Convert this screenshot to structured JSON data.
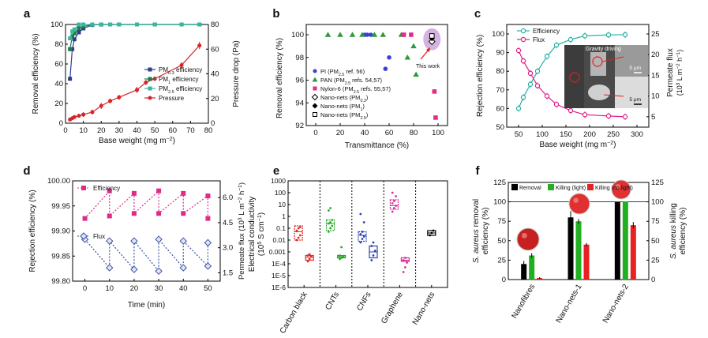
{
  "panel_letters": [
    "a",
    "b",
    "c",
    "d",
    "e",
    "f"
  ],
  "chart_data": [
    {
      "id": "a",
      "type": "line",
      "xlabel": "Base weight (mg m−2)",
      "ylabel": "Removal efficiency (%)",
      "y2label": "Pressure drop (Pa)",
      "xlim": [
        0,
        80
      ],
      "ylim": [
        0,
        100
      ],
      "y2lim": [
        0,
        80
      ],
      "xticks": [
        "0",
        "10",
        "20",
        "30",
        "40",
        "50",
        "60",
        "70",
        "80"
      ],
      "yticks": [
        "0",
        "20",
        "40",
        "60",
        "80",
        "100"
      ],
      "y2ticks": [
        "0",
        "20",
        "40",
        "60",
        "80"
      ],
      "legend_position": "lower-right",
      "colors": {
        "blue": "#2c3e8c",
        "green": "#1e7a4a",
        "cyan": "#3ab5a0",
        "red": "#d6242a"
      },
      "series": [
        {
          "name": "PM0.3 efficiency",
          "axis": "left",
          "color": "#2c3e8c",
          "marker": "square",
          "x": [
            2.5,
            3.8,
            5,
            7.5,
            10,
            15,
            20,
            25,
            30,
            40,
            50,
            65,
            75
          ],
          "y": [
            45,
            75,
            85,
            92,
            96,
            99.5,
            99.9,
            100,
            100,
            100,
            100,
            100,
            100
          ]
        },
        {
          "name": "PM1 efficiency",
          "axis": "left",
          "color": "#1e7a4a",
          "marker": "square",
          "x": [
            2.5,
            3.8,
            5,
            7.5,
            10,
            15,
            20,
            25,
            30,
            40,
            50,
            65,
            75
          ],
          "y": [
            75,
            88,
            91,
            96,
            98,
            99.8,
            100,
            100,
            100,
            100,
            100,
            100,
            100
          ]
        },
        {
          "name": "PM2.5 efficiency",
          "axis": "left",
          "color": "#3ab5a0",
          "marker": "square",
          "x": [
            2.5,
            3.8,
            5,
            7.5,
            10,
            15,
            20,
            25,
            30,
            40,
            50,
            65,
            75
          ],
          "y": [
            86,
            93,
            95,
            100,
            100,
            100,
            100,
            100,
            100,
            100,
            100,
            100,
            100
          ]
        },
        {
          "name": "Pressure",
          "axis": "right",
          "color": "#d6242a",
          "marker": "circle",
          "x": [
            2.5,
            3.8,
            5,
            7.5,
            10,
            15,
            20,
            25,
            30,
            40,
            45,
            50,
            65,
            75
          ],
          "y": [
            3,
            4,
            5,
            6,
            7,
            9,
            14,
            18,
            21,
            27,
            33,
            36,
            47,
            63
          ],
          "err": [
            1,
            1,
            1,
            1.5,
            2,
            2,
            2.5,
            2,
            2,
            2.5,
            2,
            2,
            2.5,
            3
          ]
        }
      ]
    },
    {
      "id": "b",
      "type": "scatter",
      "xlabel": "Transmittance (%)",
      "ylabel": "Removal efficiency (%)",
      "xlim": [
        0,
        100
      ],
      "ylim": [
        92,
        100.5
      ],
      "xticks": [
        "0",
        "20",
        "40",
        "60",
        "80",
        "100"
      ],
      "yticks": [
        "92",
        "94",
        "96",
        "98",
        "100"
      ],
      "annotation": "This work",
      "legend_position": "lower-left",
      "series": [
        {
          "name": "PI (PM2.5 ref. 56)",
          "marker": "circle",
          "color": "#3a3fd6",
          "x": [
            40,
            42,
            45,
            57,
            60
          ],
          "y": [
            100,
            100,
            100,
            97,
            98
          ]
        },
        {
          "name": "PAN (PM2.5 refs. 54,57)",
          "marker": "triangle",
          "color": "#2e9a3e",
          "x": [
            10,
            20,
            30,
            38,
            48,
            55,
            70,
            75,
            80,
            82
          ],
          "y": [
            100,
            100,
            100,
            100,
            100,
            100,
            100,
            98,
            99,
            96.5
          ]
        },
        {
          "name": "Nylon-6 (PM2.5 refs. 55,57)",
          "marker": "square",
          "color": "#e62a8a",
          "x": [
            72,
            78,
            97,
            98
          ],
          "y": [
            100,
            100,
            95,
            92.7
          ]
        },
        {
          "name": "Nano-nets (PM0.3)",
          "marker": "open-diamond",
          "color": "#000000",
          "x": [
            95
          ],
          "y": [
            99.4
          ]
        },
        {
          "name": "Nano-nets (PM1)",
          "marker": "diamond",
          "color": "#000000",
          "x": [
            95
          ],
          "y": [
            99.7
          ]
        },
        {
          "name": "Nano-nets (PM2.5)",
          "marker": "open-square",
          "color": "#000000",
          "x": [
            95
          ],
          "y": [
            99.9
          ]
        }
      ]
    },
    {
      "id": "c",
      "type": "line",
      "xlabel": "Base weight (mg m−2)",
      "ylabel": "Rejection efficiency (%)",
      "y2label": "Permeate flux (103 L m−2 h−1)",
      "xlim": [
        25,
        325
      ],
      "ylim": [
        50,
        100
      ],
      "y2lim": [
        2.5,
        25
      ],
      "xticks": [
        "50",
        "100",
        "150",
        "200",
        "250",
        "300"
      ],
      "yticks": [
        "50",
        "60",
        "70",
        "80",
        "90",
        "100"
      ],
      "y2ticks": [
        "5",
        "10",
        "15",
        "20",
        "25"
      ],
      "inset_labels": [
        "Gravity driving",
        "5 μm",
        "5 μm"
      ],
      "legend_position": "top-left",
      "series": [
        {
          "name": "Efficiency",
          "axis": "left",
          "color": "#26b0a2",
          "marker": "circle",
          "x": [
            50,
            60,
            75,
            90,
            110,
            130,
            160,
            190,
            240,
            275
          ],
          "y": [
            60,
            66,
            73,
            80,
            88,
            94,
            97,
            99,
            99.5,
            99.6
          ]
        },
        {
          "name": "Flux",
          "axis": "right",
          "color": "#e0208a",
          "marker": "circle",
          "x": [
            50,
            60,
            75,
            90,
            110,
            130,
            160,
            190,
            240,
            275
          ],
          "y": [
            21,
            18.5,
            15.5,
            12.5,
            10,
            8,
            6.5,
            5.5,
            5.2,
            5
          ]
        }
      ]
    },
    {
      "id": "d",
      "type": "line",
      "xlabel": "Time (min)",
      "ylabel": "Rejection efficiency (%)",
      "y2label": "Permeate flux (103 L m−2 h−1)",
      "xlim": [
        -5,
        55
      ],
      "ylim": [
        99.8,
        100
      ],
      "y2lim": [
        1,
        7
      ],
      "xticks": [
        "0",
        "10",
        "20",
        "30",
        "40",
        "50"
      ],
      "yticks": [
        "99.80",
        "99.85",
        "99.90",
        "99.95",
        "100.00"
      ],
      "y2ticks": [
        "1.5",
        "3.0",
        "4.5",
        "6.0"
      ],
      "legend_position": "top-left",
      "series": [
        {
          "name": "Efficiency",
          "axis": "left",
          "color": "#e02a8a",
          "marker": "square",
          "x": [
            0,
            10,
            10,
            20,
            20,
            30,
            30,
            40,
            40,
            50,
            50
          ],
          "y": [
            99.925,
            99.98,
            99.93,
            99.975,
            99.935,
            99.98,
            99.935,
            99.975,
            99.935,
            99.97,
            99.925
          ]
        },
        {
          "name": "Flux",
          "axis": "right",
          "color": "#3b4fa0",
          "marker": "diamond",
          "x": [
            0,
            10,
            10,
            20,
            20,
            30,
            30,
            40,
            40,
            50,
            50
          ],
          "y": [
            3.5,
            1.8,
            3.4,
            1.7,
            3.4,
            1.6,
            3.5,
            1.8,
            3.4,
            1.9,
            3.3
          ]
        }
      ]
    },
    {
      "id": "e",
      "type": "scatter",
      "ylabel": "Electrical conductivity (105 S cm−1)",
      "ylim": [
        -6,
        3
      ],
      "yscale": "log",
      "yticks": [
        "1E-6",
        "1E-5",
        "1E-4",
        "0.001",
        "0.01",
        "0.1",
        "1",
        "10",
        "100",
        "1000"
      ],
      "categories": [
        "Carbon black",
        "CNTs",
        "CNFs",
        "Graphene",
        "Nano-nets"
      ],
      "series": [
        {
          "category": "Carbon black",
          "color": "#e02a2a",
          "box": [
            -2,
            -1.3,
            -0.8
          ],
          "points": [
            -2,
            -1.8,
            -1.6,
            -1.2,
            -1,
            -0.9
          ]
        },
        {
          "category": "Carbon black",
          "color": "#e02a2a",
          "box": [
            -3.7,
            -3.45,
            -3.3
          ],
          "points": [
            -3.8,
            -3.6,
            -3.4,
            -3.3,
            -3.2
          ]
        },
        {
          "category": "CNTs",
          "color": "#2aa82a",
          "box": [
            -1.2,
            -0.6,
            -0.3
          ],
          "points": [
            -1.3,
            -1,
            -0.8,
            -0.6,
            -0.5,
            -0.3,
            0.5,
            0.7
          ]
        },
        {
          "category": "CNTs",
          "color": "#2aa82a",
          "box": [
            -3.5,
            -3.4,
            -3.3
          ],
          "points": [
            -3.6,
            -3.5,
            -3.4,
            -3.3,
            -2.6
          ]
        },
        {
          "category": "CNFs",
          "color": "#2a3fb0",
          "box": [
            -2.1,
            -1.6,
            -1.3
          ],
          "points": [
            -2.2,
            -1.9,
            -1.7,
            -1.5,
            -1.3,
            -0.5,
            0.2
          ]
        },
        {
          "category": "CNFs",
          "color": "#2a3fb0",
          "box": [
            -3.5,
            -3,
            -2.5
          ],
          "points": [
            -3.7,
            -3.3,
            -2.9,
            -2.5,
            -2.2
          ]
        },
        {
          "category": "Graphene",
          "color": "#e02a9a",
          "box": [
            0.6,
            0.9,
            1.4
          ],
          "points": [
            0.4,
            0.7,
            0.9,
            1.1,
            1.3,
            1.7,
            2
          ]
        },
        {
          "category": "Graphene",
          "color": "#e02a9a",
          "box": [
            -3.8,
            -3.7,
            -3.5
          ],
          "points": [
            -4.7,
            -4.3,
            -3.9,
            -3.7,
            -3.5
          ]
        },
        {
          "category": "Nano-nets",
          "color": "#000000",
          "box": [
            -1.6,
            -1.4,
            -1.2
          ],
          "points": [
            -1.6,
            -1.4,
            -1.2
          ]
        }
      ]
    },
    {
      "id": "f",
      "type": "bar",
      "ylabel": "S. aureus removal efficiency (%)",
      "y2label": "S. aureus killing efficiency (%)",
      "ylim": [
        0,
        125
      ],
      "y2lim": [
        0,
        125
      ],
      "yticks": [
        "0",
        "25",
        "50",
        "75",
        "100",
        "125"
      ],
      "y2ticks": [
        "0",
        "25",
        "50",
        "75",
        "100",
        "125"
      ],
      "categories": [
        "Nanofibres",
        "Nano-nets-1",
        "Nano-nets-2"
      ],
      "legend_position": "top-left",
      "series": [
        {
          "name": "Removal",
          "color": "#000000",
          "values": [
            20,
            80,
            100
          ],
          "err": [
            4,
            8,
            0
          ]
        },
        {
          "name": "Killing (light)",
          "color": "#22b022",
          "values": [
            31,
            75,
            100
          ],
          "err": [
            3,
            3,
            0
          ]
        },
        {
          "name": "Killing (no light)",
          "color": "#e82222",
          "values": [
            2,
            45,
            70
          ],
          "err": [
            1,
            2,
            4
          ]
        }
      ]
    }
  ]
}
